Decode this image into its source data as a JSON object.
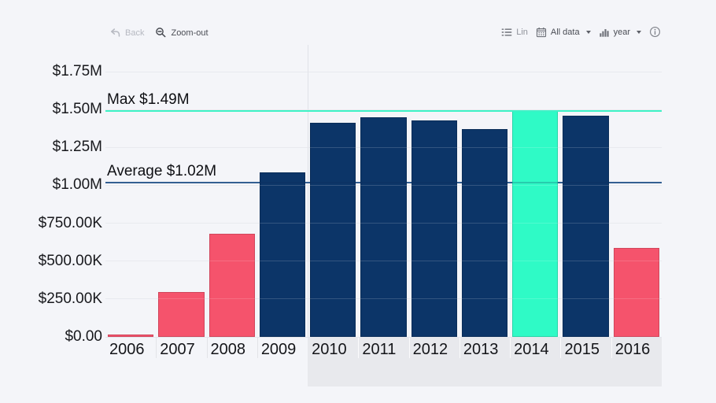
{
  "toolbar": {
    "back_label": "Back",
    "zoom_out_label": "Zoom-out",
    "lin_label": "Lin",
    "all_data_label": "All data",
    "year_label": "year"
  },
  "chart_data": {
    "type": "bar",
    "categories": [
      "2006",
      "2007",
      "2008",
      "2009",
      "2010",
      "2011",
      "2012",
      "2013",
      "2014",
      "2015",
      "2016"
    ],
    "values": [
      14000,
      295000,
      680000,
      1085000,
      1415000,
      1450000,
      1430000,
      1370000,
      1490000,
      1460000,
      585000
    ],
    "bar_states": [
      "below",
      "below",
      "below",
      "above",
      "above",
      "above",
      "above",
      "above",
      "max",
      "above",
      "below"
    ],
    "y_ticks": [
      {
        "value": 0,
        "label": "$0.00"
      },
      {
        "value": 250000,
        "label": "$250.00K"
      },
      {
        "value": 500000,
        "label": "$500.00K"
      },
      {
        "value": 750000,
        "label": "$750.00K"
      },
      {
        "value": 1000000,
        "label": "$1.00M"
      },
      {
        "value": 1250000,
        "label": "$1.25M"
      },
      {
        "value": 1500000,
        "label": "$1.50M"
      },
      {
        "value": 1750000,
        "label": "$1.75M"
      }
    ],
    "ylim": [
      0,
      1926000
    ],
    "grid": true,
    "legend": "none",
    "annotations": {
      "max": {
        "label": "Max $1.49M",
        "value": 1490000,
        "line_color": "#3df2c6"
      },
      "average": {
        "label": "Average $1.02M",
        "value": 1020000,
        "line_color": "#3e6fa3"
      }
    },
    "selected_range": {
      "from_category": "2010",
      "to_category": "2016"
    },
    "palette": {
      "below": "#f5536c",
      "above": "#0c3568",
      "max": "#2ffac6"
    }
  }
}
